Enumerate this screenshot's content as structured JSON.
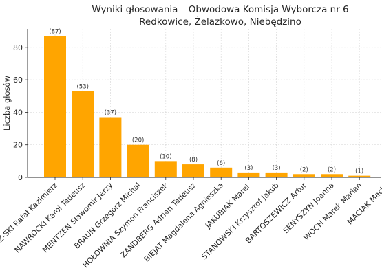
{
  "chart_data": {
    "type": "bar",
    "title": [
      "Wyniki głosowania – Obwodowa Komisja Wyborcza nr 6",
      "Redkowice, Żelazkowo, Niebędzino"
    ],
    "ylabel": "Liczba głosów",
    "xlabel": "",
    "categories": [
      "BOCHNIARZ-SKI Rafał Kazimierz",
      "NAWROCKI Karol Tadeusz",
      "MENTZEN Sławomir Jerzy",
      "BRAUN Grzegorz Michał",
      "HOŁOWNIA Szymon Franciszek",
      "ZANDBERG Adrian Tadeusz",
      "BIEJAT Magdalena Agnieszka",
      "JAKUBIAK Marek",
      "STANOWSKI Krzysztof Jakub",
      "BARTOSZEWICZ Artur",
      "SENYSZYN Joanna",
      "WOCH Marek Marian",
      "MACIAK Maciej"
    ],
    "values": [
      87,
      53,
      37,
      20,
      10,
      8,
      6,
      3,
      3,
      2,
      2,
      1,
      0
    ],
    "data_labels": [
      "(87)",
      "(53)",
      "(37)",
      "(20)",
      "(10)",
      "(8)",
      "(6)",
      "(3)",
      "(3)",
      "(2)",
      "(2)",
      "(1)",
      ""
    ],
    "yticks": [
      0,
      20,
      40,
      60,
      80
    ],
    "ylim": [
      0,
      91.35
    ],
    "bar_color": "#FFA500",
    "grid": true
  }
}
